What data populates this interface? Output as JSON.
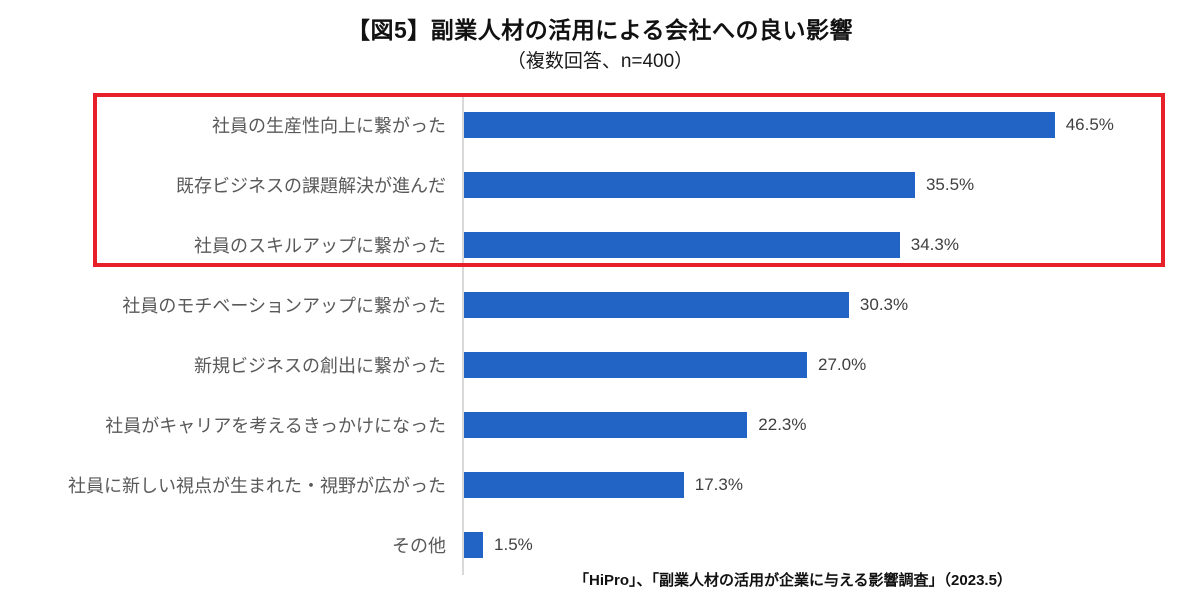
{
  "title": "【図5】副業人材の活用による会社への良い影響",
  "subtitle": "（複数回答、n=400）",
  "source": "「HiPro」、「副業人材の活用が企業に与える影響調査」（2023.5）",
  "chart_data": {
    "type": "bar",
    "orientation": "horizontal",
    "title": "【図5】副業人材の活用による会社への良い影響",
    "subtitle": "（複数回答、n=400）",
    "categories": [
      "社員の生産性向上に繋がった",
      "既存ビジネスの課題解決が進んだ",
      "社員のスキルアップに繋がった",
      "社員のモチベーションアップに繋がった",
      "新規ビジネスの創出に繋がった",
      "社員がキャリアを考えるきっかけになった",
      "社員に新しい視点が生まれた・視野が広がった",
      "その他"
    ],
    "values": [
      46.5,
      35.5,
      34.3,
      30.3,
      27.0,
      22.3,
      17.3,
      1.5
    ],
    "value_labels": [
      "46.5%",
      "35.5%",
      "34.3%",
      "30.3%",
      "27.0%",
      "22.3%",
      "17.3%",
      "1.5%"
    ],
    "xlabel": "",
    "ylabel": "",
    "xlim": [
      0,
      54
    ],
    "grid": false,
    "legend": false,
    "bar_color": "#2263c6",
    "highlight": {
      "rows_highlighted": [
        0,
        1,
        2
      ],
      "box_color": "#e8202a"
    },
    "source_note": "「HiPro」、「副業人材の活用が企業に与える影響調査」（2023.5）"
  }
}
